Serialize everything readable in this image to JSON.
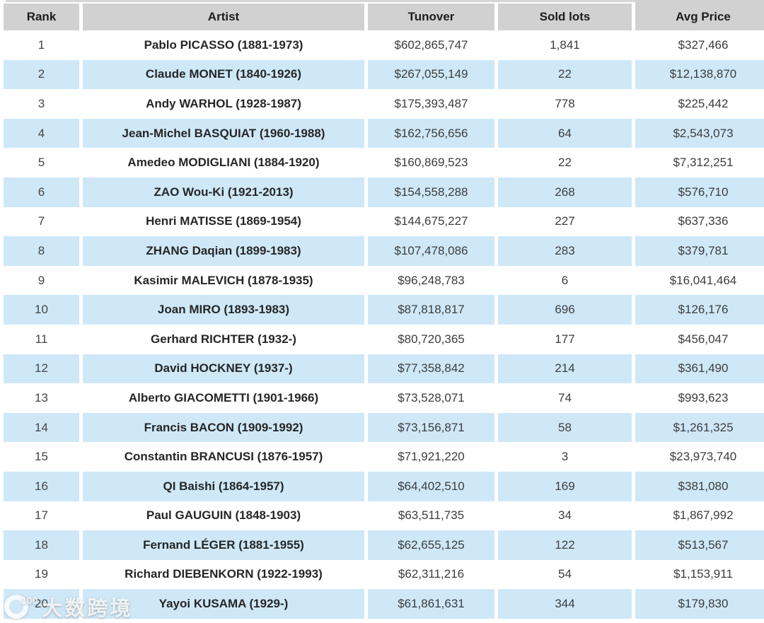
{
  "chart_data": {
    "type": "table",
    "columns": [
      "Rank",
      "Artist",
      "Tunover",
      "Sold lots",
      "Avg Price"
    ],
    "rows": [
      [
        "1",
        "Pablo PICASSO (1881-1973)",
        "$602,865,747",
        "1,841",
        "$327,466"
      ],
      [
        "2",
        "Claude MONET (1840-1926)",
        "$267,055,149",
        "22",
        "$12,138,870"
      ],
      [
        "3",
        "Andy WARHOL (1928-1987)",
        "$175,393,487",
        "778",
        "$225,442"
      ],
      [
        "4",
        "Jean-Michel BASQUIAT (1960-1988)",
        "$162,756,656",
        "64",
        "$2,543,073"
      ],
      [
        "5",
        "Amedeo MODIGLIANI (1884-1920)",
        "$160,869,523",
        "22",
        "$7,312,251"
      ],
      [
        "6",
        "ZAO Wou-Ki (1921-2013)",
        "$154,558,288",
        "268",
        "$576,710"
      ],
      [
        "7",
        "Henri MATISSE (1869-1954)",
        "$144,675,227",
        "227",
        "$637,336"
      ],
      [
        "8",
        "ZHANG Daqian (1899-1983)",
        "$107,478,086",
        "283",
        "$379,781"
      ],
      [
        "9",
        "Kasimir MALEVICH (1878-1935)",
        "$96,248,783",
        "6",
        "$16,041,464"
      ],
      [
        "10",
        "Joan MIRO (1893-1983)",
        "$87,818,817",
        "696",
        "$126,176"
      ],
      [
        "11",
        "Gerhard RICHTER (1932-)",
        "$80,720,365",
        "177",
        "$456,047"
      ],
      [
        "12",
        "David HOCKNEY (1937-)",
        "$77,358,842",
        "214",
        "$361,490"
      ],
      [
        "13",
        "Alberto GIACOMETTI (1901-1966)",
        "$73,528,071",
        "74",
        "$993,623"
      ],
      [
        "14",
        "Francis BACON (1909-1992)",
        "$73,156,871",
        "58",
        "$1,261,325"
      ],
      [
        "15",
        "Constantin BRANCUSI (1876-1957)",
        "$71,921,220",
        "3",
        "$23,973,740"
      ],
      [
        "16",
        "QI Baishi (1864-1957)",
        "$64,402,510",
        "169",
        "$381,080"
      ],
      [
        "17",
        "Paul GAUGUIN (1848-1903)",
        "$63,511,735",
        "34",
        "$1,867,992"
      ],
      [
        "18",
        "Fernand LÉGER (1881-1955)",
        "$62,655,125",
        "122",
        "$513,567"
      ],
      [
        "19",
        "Richard DIEBENKORN (1922-1993)",
        "$62,311,216",
        "54",
        "$1,153,911"
      ],
      [
        "20",
        "Yayoi KUSAMA (1929-)",
        "$61,861,631",
        "344",
        "$179,830"
      ]
    ]
  },
  "watermark": {
    "logo_label": "100",
    "text": "大数跨境"
  },
  "colors": {
    "header_bg": "#d1d1d1",
    "row_bg": "#ffffff",
    "row_alt_bg": "#cfe8f8",
    "header_text": "#1d1d1d",
    "body_text": "#3c3c3c"
  }
}
